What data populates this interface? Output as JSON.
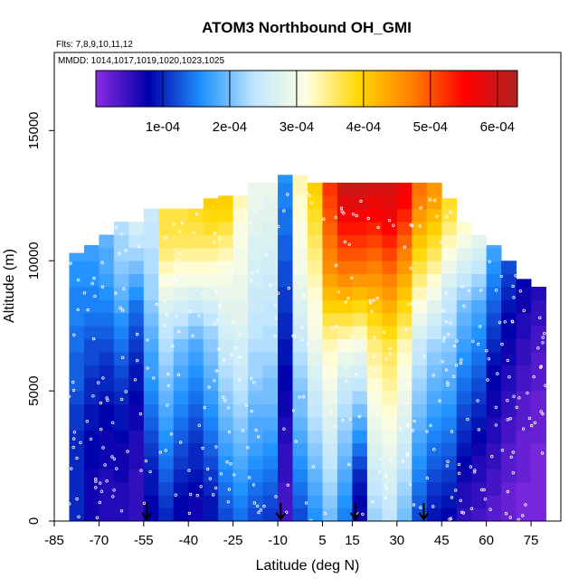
{
  "chart_data": {
    "type": "heatmap",
    "title": "ATOM3 Northbound OH_GMI",
    "flights_note": "Flts: 7,8,9,10,11,12",
    "dates_note": "MMDD: 1014,1017,1019,1020,1023,1025",
    "xlabel": "Latitude (deg N)",
    "ylabel": "Altitude (m)",
    "xlim": [
      -85,
      85
    ],
    "ylim": [
      0,
      18000
    ],
    "x_ticks": [
      -85,
      -70,
      -55,
      -40,
      -25,
      -10,
      5,
      15,
      30,
      45,
      60,
      75
    ],
    "x_tick_labels": [
      "-85",
      "-70",
      "-55",
      "-40",
      "-25",
      "-10",
      "5",
      "15",
      "30",
      "45",
      "60",
      "75"
    ],
    "y_ticks": [
      0,
      5000,
      10000,
      15000
    ],
    "y_tick_labels": [
      "0",
      "5000",
      "10000",
      "15000"
    ],
    "colorbar": {
      "range": [
        0,
        0.00063
      ],
      "ticks": [
        0.0001,
        0.0002,
        0.0003,
        0.0004,
        0.0005,
        0.0006
      ],
      "tick_labels": [
        "1e-04",
        "2e-04",
        "3e-04",
        "4e-04",
        "5e-04",
        "6e-04"
      ],
      "colors": [
        "#8a2be2",
        "#0000aa",
        "#1e90ff",
        "#bfe6ff",
        "#ffffe0",
        "#ffd700",
        "#ff7f00",
        "#ff0000",
        "#b22222"
      ]
    },
    "cell_height_m": 500,
    "lat_columns": [
      {
        "lat": -77.5,
        "top": 10300,
        "vals": [
          0.0001,
          0.0001,
          0.0001,
          0.0001,
          0.0001,
          0.0001,
          0.0001,
          0.00011,
          0.00011,
          0.00012,
          0.00013,
          0.00013,
          0.00013,
          0.00014,
          0.00014,
          0.00015,
          0.00015,
          0.00015,
          0.00016,
          0.00016,
          0.00017
        ]
      },
      {
        "lat": -72.5,
        "top": 10600,
        "vals": [
          7e-05,
          7e-05,
          7e-05,
          7e-05,
          8e-05,
          8e-05,
          8e-05,
          9e-05,
          9e-05,
          0.0001,
          0.0001,
          0.00011,
          0.00012,
          0.00012,
          0.00013,
          0.00014,
          0.00015,
          0.00015,
          0.00016,
          0.00016,
          0.00017,
          0.00017
        ]
      },
      {
        "lat": -67.5,
        "top": 11000,
        "vals": [
          6e-05,
          6e-05,
          6e-05,
          6e-05,
          7e-05,
          7e-05,
          7e-05,
          8e-05,
          8e-05,
          9e-05,
          0.0001,
          0.0001,
          0.00011,
          0.00012,
          0.00013,
          0.00014,
          0.00015,
          0.00016,
          0.00017,
          0.00018,
          0.00018,
          0.00019
        ]
      },
      {
        "lat": -62.5,
        "top": 11600,
        "vals": [
          6e-05,
          6e-05,
          6e-05,
          7e-05,
          7e-05,
          7e-05,
          8e-05,
          9e-05,
          9e-05,
          0.0001,
          0.00011,
          0.00012,
          0.00013,
          0.00014,
          0.00015,
          0.00016,
          0.00018,
          0.00019,
          0.0002,
          0.00021,
          0.00022,
          0.00022,
          0.00023
        ]
      },
      {
        "lat": -57.5,
        "top": 11800,
        "vals": [
          5e-05,
          5e-05,
          5e-05,
          5e-05,
          6e-05,
          6e-05,
          6e-05,
          7e-05,
          7e-05,
          8e-05,
          9e-05,
          9e-05,
          0.0001,
          0.00011,
          0.00012,
          0.00013,
          0.00014,
          0.00016,
          0.00018,
          0.0002,
          0.00022,
          0.00024,
          0.00026
        ]
      },
      {
        "lat": -52.5,
        "top": 12000,
        "vals": [
          8e-05,
          8e-05,
          9e-05,
          9e-05,
          0.0001,
          0.00011,
          0.00012,
          0.00013,
          0.00014,
          0.00015,
          0.00016,
          0.00017,
          0.00017,
          0.00018,
          0.00019,
          0.0002,
          0.00021,
          0.00022,
          0.00022,
          0.00023,
          0.00023,
          0.00024,
          0.00024,
          0.00025
        ]
      },
      {
        "lat": -47.5,
        "top": 12000,
        "vals": [
          0.0001,
          0.00011,
          0.00012,
          0.00013,
          0.00014,
          0.00015,
          0.00016,
          0.00017,
          0.00018,
          0.00019,
          0.0002,
          0.00021,
          0.00022,
          0.00023,
          0.00024,
          0.00025,
          0.00027,
          0.00029,
          0.00031,
          0.00033,
          0.00035,
          0.00036,
          0.00037,
          0.00037
        ]
      },
      {
        "lat": -42.5,
        "top": 12000,
        "vals": [
          8e-05,
          8e-05,
          9e-05,
          0.0001,
          0.00011,
          0.00012,
          0.00013,
          0.00014,
          0.00015,
          0.00016,
          0.00017,
          0.00018,
          0.00019,
          0.0002,
          0.00022,
          0.00024,
          0.00026,
          0.00028,
          0.0003,
          0.00032,
          0.00034,
          0.00036,
          0.00037,
          0.00037
        ]
      },
      {
        "lat": -37.5,
        "top": 12300,
        "vals": [
          7e-05,
          7e-05,
          8e-05,
          9e-05,
          0.0001,
          0.0001,
          0.00011,
          0.00012,
          0.00013,
          0.00014,
          0.00015,
          0.00016,
          0.00017,
          0.00018,
          0.0002,
          0.00022,
          0.00025,
          0.00027,
          0.0003,
          0.00032,
          0.00034,
          0.00036,
          0.00037,
          0.00038
        ]
      },
      {
        "lat": -32.5,
        "top": 12400,
        "vals": [
          9e-05,
          9e-05,
          0.0001,
          0.00011,
          0.00012,
          0.00013,
          0.00014,
          0.00015,
          0.00016,
          0.00017,
          0.00018,
          0.00019,
          0.0002,
          0.00021,
          0.00022,
          0.00024,
          0.00026,
          0.00028,
          0.0003,
          0.00032,
          0.00034,
          0.00036,
          0.00038,
          0.00039,
          0.0004
        ]
      },
      {
        "lat": -27.5,
        "top": 12500,
        "vals": [
          0.00012,
          0.00013,
          0.00014,
          0.00015,
          0.00016,
          0.00017,
          0.00018,
          0.00019,
          0.0002,
          0.00021,
          0.00022,
          0.00023,
          0.00024,
          0.00025,
          0.00026,
          0.00027,
          0.00028,
          0.00029,
          0.0003,
          0.00031,
          0.00033,
          0.00035,
          0.00037,
          0.00039,
          0.0004
        ]
      },
      {
        "lat": -22.5,
        "top": 12800,
        "vals": [
          0.00014,
          0.00015,
          0.00016,
          0.00017,
          0.00018,
          0.00019,
          0.0002,
          0.00021,
          0.00022,
          0.00023,
          0.00024,
          0.00025,
          0.00026,
          0.00026,
          0.00027,
          0.00028,
          0.00028,
          0.00029,
          0.00029,
          0.0003,
          0.0003,
          0.00031,
          0.00031,
          0.00032,
          0.00033
        ]
      },
      {
        "lat": -17.5,
        "top": 13000,
        "vals": [
          0.00012,
          0.00013,
          0.00014,
          0.00015,
          0.00016,
          0.00017,
          0.00018,
          0.00018,
          0.00019,
          0.0002,
          0.00021,
          0.00022,
          0.00022,
          0.00023,
          0.00024,
          0.00024,
          0.00025,
          0.00025,
          0.00026,
          0.00026,
          0.00027,
          0.00027,
          0.00028,
          0.00028,
          0.00029,
          0.00029
        ]
      },
      {
        "lat": -12.5,
        "top": 13000,
        "vals": [
          0.00011,
          0.00012,
          0.00013,
          0.00014,
          0.00015,
          0.00016,
          0.00017,
          0.00018,
          0.00019,
          0.0002,
          0.0002,
          0.00021,
          0.00022,
          0.00023,
          0.00023,
          0.00024,
          0.00024,
          0.00025,
          0.00025,
          0.00026,
          0.00026,
          0.00027,
          0.00027,
          0.00028,
          0.00028,
          0.00029
        ]
      },
      {
        "lat": -7.5,
        "top": 13300,
        "vals": [
          4e-05,
          4e-05,
          4e-05,
          5e-05,
          5e-05,
          5e-05,
          6e-05,
          6e-05,
          7e-05,
          7e-05,
          8e-05,
          8e-05,
          9e-05,
          9e-05,
          0.0001,
          0.0001,
          0.00011,
          0.00011,
          0.00012,
          0.00012,
          0.00013,
          0.00013,
          0.00014,
          0.00014,
          0.00015,
          0.00015,
          0.00016
        ]
      },
      {
        "lat": -2.5,
        "top": 13300,
        "vals": [
          0.00012,
          0.00013,
          0.00014,
          0.00015,
          0.00016,
          0.00017,
          0.00018,
          0.00019,
          0.0002,
          0.0002,
          0.00021,
          0.00022,
          0.00023,
          0.00024,
          0.00025,
          0.00026,
          0.00027,
          0.00028,
          0.00029,
          0.0003,
          0.0003,
          0.00031,
          0.00031,
          0.00032,
          0.00032,
          0.00033,
          0.00033
        ]
      },
      {
        "lat": 2.5,
        "top": 13000,
        "vals": [
          0.00016,
          0.00017,
          0.00018,
          0.00019,
          0.0002,
          0.00021,
          0.00022,
          0.00023,
          0.00024,
          0.00025,
          0.00026,
          0.00027,
          0.00028,
          0.00029,
          0.0003,
          0.00031,
          0.00031,
          0.00032,
          0.00033,
          0.00034,
          0.00035,
          0.00036,
          0.00037,
          0.00038,
          0.00039,
          0.0004
        ]
      },
      {
        "lat": 7.5,
        "top": 13000,
        "vals": [
          0.0002,
          0.00021,
          0.00022,
          0.00023,
          0.00024,
          0.00025,
          0.00026,
          0.00027,
          0.00028,
          0.00029,
          0.0003,
          0.00031,
          0.00032,
          0.00033,
          0.00035,
          0.00037,
          0.0004,
          0.00042,
          0.00044,
          0.00046,
          0.00047,
          0.00048,
          0.00049,
          0.0005,
          0.00051,
          0.00052
        ]
      },
      {
        "lat": 12.5,
        "top": 13000,
        "vals": [
          0.00015,
          0.00016,
          0.00017,
          0.00018,
          0.00019,
          0.0002,
          0.00021,
          0.00022,
          0.00023,
          0.00024,
          0.00025,
          0.00027,
          0.00029,
          0.00031,
          0.00034,
          0.00037,
          0.0004,
          0.00043,
          0.00046,
          0.00048,
          0.0005,
          0.00052,
          0.00054,
          0.00056,
          0.00058,
          0.0006
        ]
      },
      {
        "lat": 17.5,
        "top": 13000,
        "vals": [
          7e-05,
          8e-05,
          9e-05,
          0.0001,
          0.00012,
          0.00014,
          0.00016,
          0.00018,
          0.0002,
          0.00022,
          0.00024,
          0.00026,
          0.00028,
          0.0003,
          0.00033,
          0.00036,
          0.00039,
          0.00042,
          0.00045,
          0.00048,
          0.0005,
          0.00052,
          0.00054,
          0.00056,
          0.00058,
          0.0006
        ]
      },
      {
        "lat": 22.5,
        "top": 13000,
        "vals": [
          0.00022,
          0.00023,
          0.00024,
          0.00025,
          0.00026,
          0.00027,
          0.00028,
          0.00029,
          0.0003,
          0.00031,
          0.00032,
          0.00033,
          0.00034,
          0.00035,
          0.00037,
          0.00039,
          0.00041,
          0.00043,
          0.00045,
          0.00047,
          0.00049,
          0.00051,
          0.00053,
          0.00055,
          0.00057,
          0.00059
        ]
      },
      {
        "lat": 27.5,
        "top": 13000,
        "vals": [
          0.00024,
          0.00025,
          0.00026,
          0.00027,
          0.00028,
          0.00029,
          0.0003,
          0.00031,
          0.00032,
          0.00033,
          0.00034,
          0.00035,
          0.00036,
          0.00037,
          0.00039,
          0.00041,
          0.00043,
          0.00045,
          0.00047,
          0.00049,
          0.00051,
          0.00053,
          0.00055,
          0.00057,
          0.00058,
          0.00059
        ]
      },
      {
        "lat": 32.5,
        "top": 13000,
        "vals": [
          0.0002,
          0.00021,
          0.00022,
          0.00023,
          0.00024,
          0.00025,
          0.00026,
          0.00027,
          0.00028,
          0.00029,
          0.0003,
          0.00031,
          0.00032,
          0.00033,
          0.00035,
          0.00037,
          0.00039,
          0.00041,
          0.00043,
          0.00045,
          0.00047,
          0.00049,
          0.00051,
          0.00053,
          0.00055,
          0.00056
        ]
      },
      {
        "lat": 37.5,
        "top": 13000,
        "vals": [
          0.00012,
          0.00013,
          0.00014,
          0.00015,
          0.00016,
          0.00017,
          0.00018,
          0.00019,
          0.0002,
          0.00021,
          0.00022,
          0.00023,
          0.00024,
          0.00025,
          0.00027,
          0.00029,
          0.00031,
          0.00033,
          0.00035,
          0.00037,
          0.00039,
          0.00041,
          0.00043,
          0.00045,
          0.00047,
          0.00048
        ]
      },
      {
        "lat": 42.5,
        "top": 13000,
        "vals": [
          9e-05,
          0.0001,
          0.00011,
          0.00012,
          0.00013,
          0.00014,
          0.00015,
          0.00016,
          0.00017,
          0.00018,
          0.00019,
          0.0002,
          0.00021,
          0.00022,
          0.00024,
          0.00026,
          0.00028,
          0.0003,
          0.00032,
          0.00034,
          0.00036,
          0.00038,
          0.0004,
          0.00042,
          0.00044,
          0.00045
        ]
      },
      {
        "lat": 47.5,
        "top": 12400,
        "vals": [
          8e-05,
          9e-05,
          0.0001,
          0.00011,
          0.00012,
          0.00013,
          0.00014,
          0.00015,
          0.00016,
          0.00017,
          0.00018,
          0.00019,
          0.0002,
          0.00021,
          0.00022,
          0.00023,
          0.00024,
          0.00025,
          0.00027,
          0.00029,
          0.00031,
          0.00033,
          0.00035,
          0.00037,
          0.00038
        ]
      },
      {
        "lat": 52.5,
        "top": 11800,
        "vals": [
          5e-05,
          6e-05,
          6e-05,
          7e-05,
          8e-05,
          9e-05,
          0.0001,
          0.00011,
          0.00012,
          0.00013,
          0.00014,
          0.00015,
          0.00016,
          0.00017,
          0.00018,
          0.00019,
          0.0002,
          0.00022,
          0.00024,
          0.00026,
          0.00028,
          0.0003,
          0.00032
        ]
      },
      {
        "lat": 57.5,
        "top": 11000,
        "vals": [
          4e-05,
          5e-05,
          5e-05,
          6e-05,
          6e-05,
          7e-05,
          8e-05,
          9e-05,
          0.0001,
          0.00011,
          0.00012,
          0.00013,
          0.00014,
          0.00015,
          0.00016,
          0.00017,
          0.00018,
          0.0002,
          0.00022,
          0.00024,
          0.00026,
          0.00028
        ]
      },
      {
        "lat": 62.5,
        "top": 10600,
        "vals": [
          3e-05,
          3e-05,
          4e-05,
          4e-05,
          5e-05,
          5e-05,
          6e-05,
          6e-05,
          7e-05,
          7e-05,
          8e-05,
          8e-05,
          9e-05,
          0.0001,
          0.00011,
          0.00012,
          0.00013,
          0.00014,
          0.00015,
          0.00016,
          0.00017,
          0.00018
        ]
      },
      {
        "lat": 67.5,
        "top": 10000,
        "vals": [
          2e-05,
          2e-05,
          2e-05,
          3e-05,
          3e-05,
          3e-05,
          4e-05,
          4e-05,
          5e-05,
          5e-05,
          6e-05,
          6e-05,
          7e-05,
          7e-05,
          8e-05,
          8e-05,
          9e-05,
          0.0001,
          0.00011,
          0.00012
        ]
      },
      {
        "lat": 72.5,
        "top": 9300,
        "vals": [
          1e-05,
          1e-05,
          1e-05,
          2e-05,
          2e-05,
          2e-05,
          2e-05,
          3e-05,
          3e-05,
          3e-05,
          4e-05,
          4e-05,
          5e-05,
          5e-05,
          6e-05,
          6e-05,
          7e-05,
          7e-05,
          8e-05
        ]
      },
      {
        "lat": 77.5,
        "top": 9000,
        "vals": [
          1e-05,
          1e-05,
          1e-05,
          1e-05,
          1e-05,
          1e-05,
          2e-05,
          2e-05,
          2e-05,
          2e-05,
          3e-05,
          3e-05,
          3e-05,
          4e-05,
          4e-05,
          5e-05,
          5e-05,
          6e-05
        ]
      }
    ],
    "arrows_lat": [
      -54,
      -9,
      16,
      39
    ]
  }
}
